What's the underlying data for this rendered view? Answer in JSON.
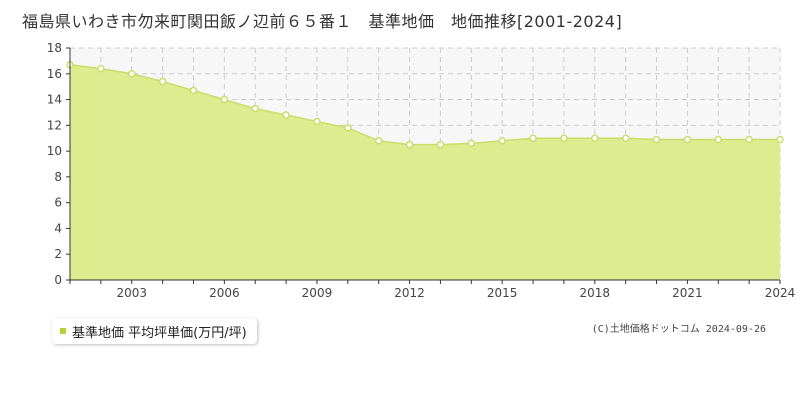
{
  "title": "福島県いわき市勿来町関田飯ノ辺前６５番１　基準地価　地価推移[2001-2024]",
  "legend": {
    "label": "基準地価 平均坪単価(万円/坪)",
    "color": "#b5d334"
  },
  "copyright": "(C)土地価格ドットコム 2024-09-26",
  "colors": {
    "area_fill": "#dcec8f",
    "area_stroke": "#c9de6a",
    "point_fill": "#ffffff",
    "point_stroke": "#c9de6a",
    "grid": "#cccccc",
    "plot_bg": "#f7f7f7",
    "axis": "#333333"
  },
  "chart_data": {
    "type": "area",
    "x": [
      2001,
      2002,
      2003,
      2004,
      2005,
      2006,
      2007,
      2008,
      2009,
      2010,
      2011,
      2012,
      2013,
      2014,
      2015,
      2016,
      2017,
      2018,
      2019,
      2020,
      2021,
      2022,
      2023,
      2024
    ],
    "series": [
      {
        "name": "基準地価 平均坪単価(万円/坪)",
        "values": [
          16.7,
          16.4,
          16.0,
          15.4,
          14.7,
          14.0,
          13.3,
          12.8,
          12.3,
          11.8,
          10.8,
          10.5,
          10.5,
          10.6,
          10.8,
          11.0,
          11.0,
          11.0,
          11.0,
          10.9,
          10.9,
          10.9,
          10.9,
          10.9
        ]
      }
    ],
    "xticks": [
      2003,
      2006,
      2009,
      2012,
      2015,
      2018,
      2021,
      2024
    ],
    "yticks": [
      0,
      2,
      4,
      6,
      8,
      10,
      12,
      14,
      16,
      18
    ],
    "xlim": [
      2001,
      2024
    ],
    "ylim": [
      0,
      18
    ],
    "grid": true,
    "legend_position": "bottom-left"
  }
}
